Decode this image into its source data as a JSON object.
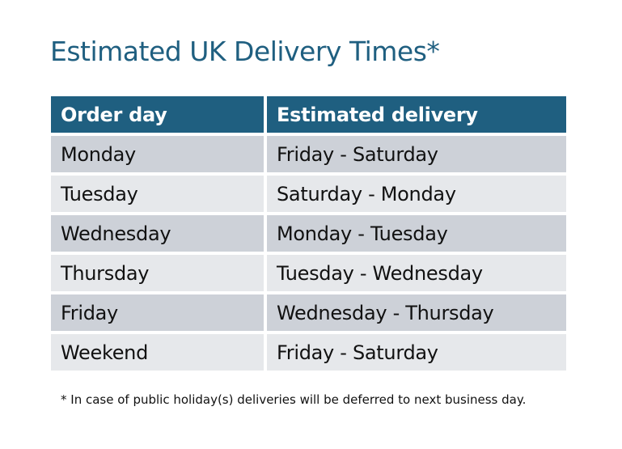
{
  "title": "Estimated UK Delivery Times*",
  "table": {
    "headers": [
      "Order day",
      "Estimated delivery"
    ],
    "rows": [
      [
        "Monday",
        "Friday - Saturday"
      ],
      [
        "Tuesday",
        "Saturday - Monday"
      ],
      [
        "Wednesday",
        "Monday - Tuesday"
      ],
      [
        "Thursday",
        "Tuesday - Wednesday"
      ],
      [
        "Friday",
        "Wednesday - Thursday"
      ],
      [
        "Weekend",
        "Friday - Saturday"
      ]
    ]
  },
  "footnote": "* In case of public holiday(s) deliveries will be deferred to next business day.",
  "colors": {
    "header": "#1f5f80",
    "row_dark": "#cdd1d8",
    "row_light": "#e6e8eb",
    "title": "#1f5f80"
  }
}
